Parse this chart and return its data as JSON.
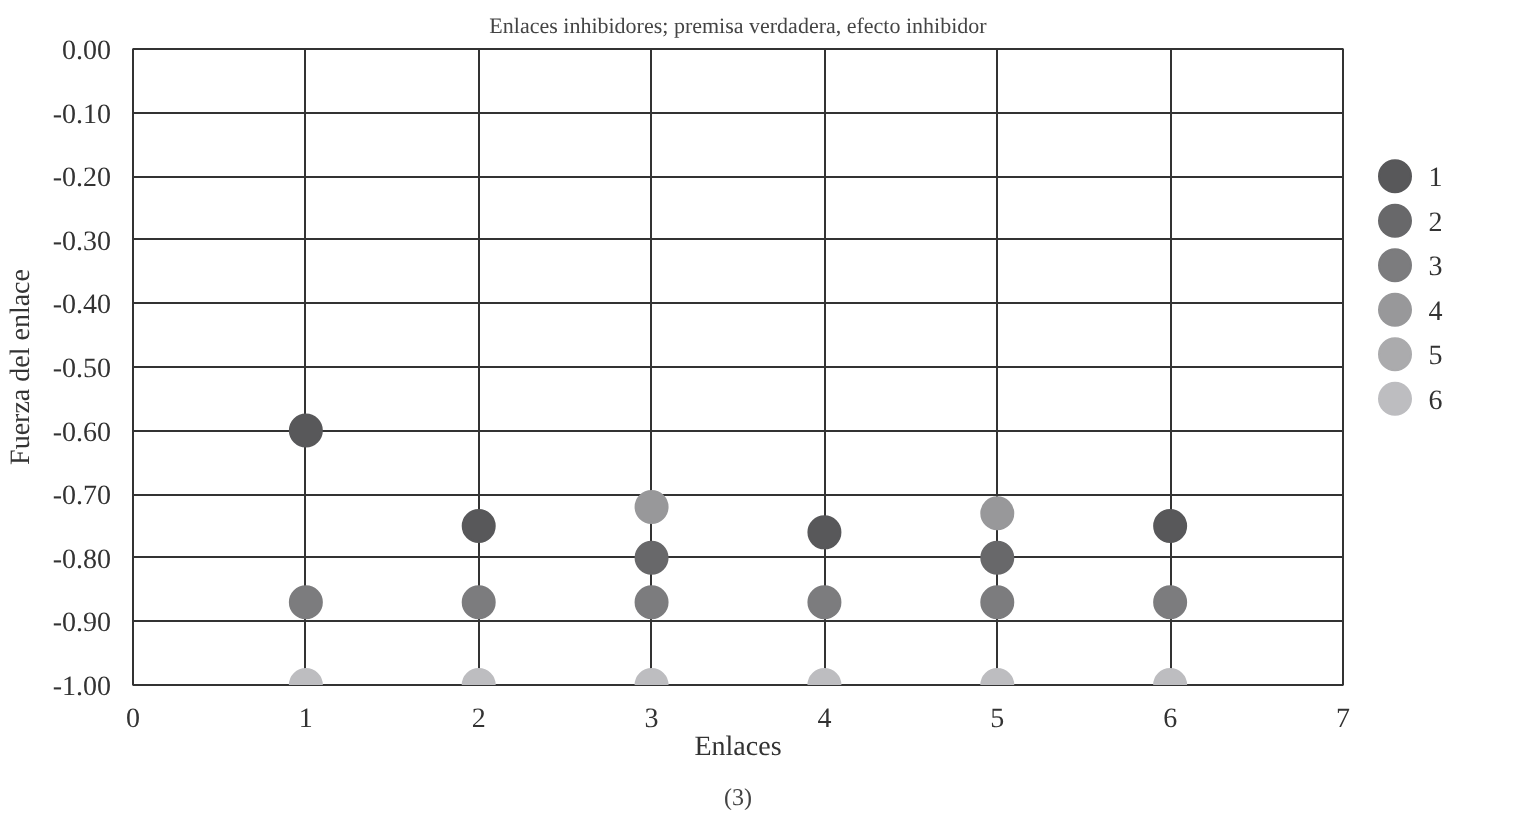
{
  "chart_data": {
    "type": "scatter",
    "title": "Enlaces inhibidores; premisa verdadera, efecto inhibidor",
    "xlabel": "Enlaces",
    "ylabel": "Fuerza del enlace",
    "annotations": [
      "(3)"
    ],
    "x": [
      1,
      2,
      3,
      4,
      5,
      6
    ],
    "series": [
      {
        "name": "1",
        "color": "#58585a",
        "values": [
          -0.6,
          -0.75,
          null,
          -0.76,
          null,
          -0.75
        ]
      },
      {
        "name": "2",
        "color": "#68686a",
        "values": [
          null,
          null,
          -0.8,
          null,
          -0.8,
          null
        ]
      },
      {
        "name": "3",
        "color": "#7c7c7e",
        "values": [
          -0.87,
          -0.87,
          -0.87,
          -0.87,
          -0.87,
          -0.87
        ]
      },
      {
        "name": "4",
        "color": "#98989a",
        "values": [
          null,
          null,
          -0.72,
          null,
          -0.73,
          null
        ]
      },
      {
        "name": "5",
        "color": "#ababad",
        "values": [
          null,
          null,
          null,
          null,
          null,
          null
        ]
      },
      {
        "name": "6",
        "color": "#bdbdc0",
        "values": [
          -1.0,
          -1.0,
          -1.0,
          -1.0,
          -1.0,
          -1.0
        ]
      }
    ],
    "xlim": [
      0,
      7
    ],
    "xticks": [
      0,
      1,
      2,
      3,
      4,
      5,
      6,
      7
    ],
    "ylim": [
      -1.0,
      0.0
    ],
    "yticks": [
      {
        "value": 0.0,
        "label": "0.00"
      },
      {
        "value": -0.1,
        "label": "-0.10"
      },
      {
        "value": -0.2,
        "label": "-0.20"
      },
      {
        "value": -0.3,
        "label": "-0.30"
      },
      {
        "value": -0.4,
        "label": "-0.40"
      },
      {
        "value": -0.5,
        "label": "-0.50"
      },
      {
        "value": -0.6,
        "label": "-0.60"
      },
      {
        "value": -0.7,
        "label": "-0.70"
      },
      {
        "value": -0.8,
        "label": "-0.80"
      },
      {
        "value": -0.9,
        "label": "-0.90"
      },
      {
        "value": -1.0,
        "label": "-1.00"
      }
    ],
    "grid": true,
    "legend": "right",
    "marker": "circle"
  }
}
